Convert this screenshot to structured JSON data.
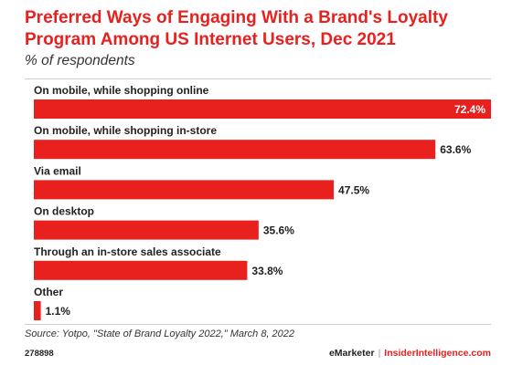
{
  "header": {
    "title": "Preferred Ways of Engaging With a Brand's Loyalty Program Among US Internet Users, Dec 2021",
    "subtitle": "% of respondents"
  },
  "footer": {
    "source": "Source: Yotpo, \"State of Brand Loyalty 2022,\" March 8, 2022",
    "chart_id": "278898",
    "brand_primary": "eMarketer",
    "brand_separator": "|",
    "brand_secondary": "InsiderIntelligence.com"
  },
  "colors": {
    "bar": "#e8211f",
    "title": "#e8211f",
    "value_inside": "#ffffff",
    "value_outside": "#222222"
  },
  "chart_data": {
    "type": "bar",
    "orientation": "horizontal",
    "title": "Preferred Ways of Engaging With a Brand's Loyalty Program Among US Internet Users, Dec 2021",
    "subtitle": "% of respondents",
    "categories": [
      "On mobile, while shopping online",
      "On mobile, while shopping in-store",
      "Via email",
      "On desktop",
      "Through an in-store sales associate",
      "Other"
    ],
    "values": [
      72.4,
      63.6,
      47.5,
      35.6,
      33.8,
      1.1
    ],
    "value_labels": [
      "72.4%",
      "63.6%",
      "47.5%",
      "35.6%",
      "33.8%",
      "1.1%"
    ],
    "unit": "%",
    "xlim": [
      0,
      72.4
    ],
    "grid": false,
    "legend": "none"
  }
}
